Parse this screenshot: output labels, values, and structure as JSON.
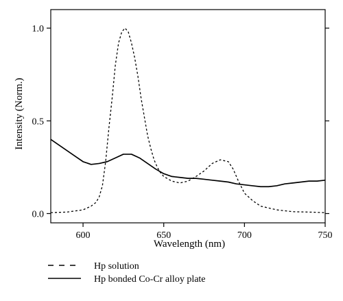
{
  "chart_data": {
    "type": "line",
    "title": "",
    "xlabel": "Wavelength (nm)",
    "ylabel": "Intensity (Norm.)",
    "xlim": [
      580,
      750
    ],
    "ylim": [
      -0.05,
      1.1
    ],
    "xticks": [
      600,
      650,
      700,
      750
    ],
    "yticks": [
      0.0,
      0.5,
      1.0
    ],
    "xtick_labels": [
      "600",
      "650",
      "700",
      "750"
    ],
    "ytick_labels": [
      "0.0",
      "0.5",
      "1.0"
    ],
    "grid": false,
    "legend_position": "bottom-left, below plot",
    "series": [
      {
        "name": "Hp solution",
        "style": "dashed",
        "color": "#000000",
        "x": [
          580,
          590,
          600,
          605,
          608,
          610,
          612,
          614,
          616,
          618,
          620,
          622,
          624,
          626,
          628,
          630,
          632,
          634,
          636,
          638,
          640,
          642,
          644,
          646,
          648,
          650,
          655,
          660,
          665,
          670,
          675,
          680,
          685,
          690,
          693,
          696,
          700,
          705,
          710,
          720,
          730,
          740,
          750
        ],
        "y": [
          0.005,
          0.008,
          0.02,
          0.04,
          0.06,
          0.09,
          0.15,
          0.28,
          0.46,
          0.62,
          0.8,
          0.92,
          0.98,
          1.0,
          0.98,
          0.92,
          0.84,
          0.74,
          0.62,
          0.52,
          0.42,
          0.35,
          0.29,
          0.25,
          0.22,
          0.2,
          0.175,
          0.165,
          0.175,
          0.2,
          0.23,
          0.27,
          0.29,
          0.28,
          0.24,
          0.18,
          0.11,
          0.07,
          0.04,
          0.02,
          0.01,
          0.008,
          0.005
        ]
      },
      {
        "name": "Hp bonded Co-Cr alloy plate",
        "style": "solid",
        "color": "#000000",
        "x": [
          580,
          585,
          590,
          595,
          600,
          605,
          610,
          615,
          620,
          625,
          630,
          635,
          640,
          645,
          650,
          655,
          660,
          665,
          670,
          675,
          680,
          685,
          690,
          695,
          700,
          705,
          710,
          715,
          720,
          725,
          730,
          735,
          740,
          745,
          750
        ],
        "y": [
          0.4,
          0.37,
          0.34,
          0.31,
          0.28,
          0.265,
          0.27,
          0.28,
          0.3,
          0.32,
          0.32,
          0.3,
          0.27,
          0.24,
          0.215,
          0.2,
          0.195,
          0.19,
          0.19,
          0.185,
          0.18,
          0.175,
          0.17,
          0.16,
          0.155,
          0.15,
          0.145,
          0.145,
          0.15,
          0.16,
          0.165,
          0.17,
          0.175,
          0.175,
          0.18
        ]
      }
    ]
  }
}
